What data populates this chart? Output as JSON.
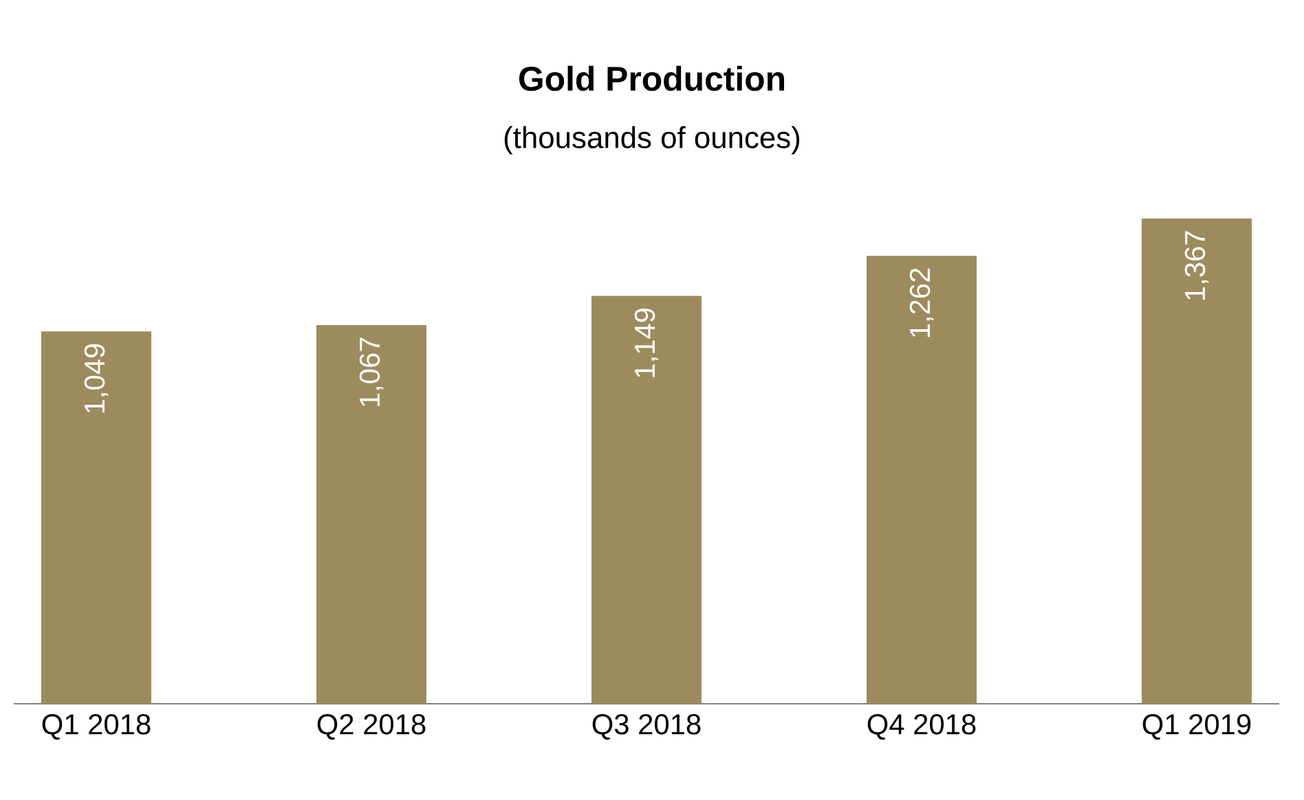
{
  "chart_data": {
    "type": "bar",
    "title": "Gold Production",
    "subtitle": "(thousands of ounces)",
    "categories": [
      "Q1 2018",
      "Q2 2018",
      "Q3 2018",
      "Q4 2018",
      "Q1 2019"
    ],
    "values": [
      1049,
      1067,
      1149,
      1262,
      1367
    ],
    "value_labels": [
      "1,049",
      "1,067",
      "1,149",
      "1,262",
      "1,367"
    ],
    "color": "#9d8b5e",
    "ylim": [
      0,
      1367
    ],
    "tick_labels": "x"
  }
}
